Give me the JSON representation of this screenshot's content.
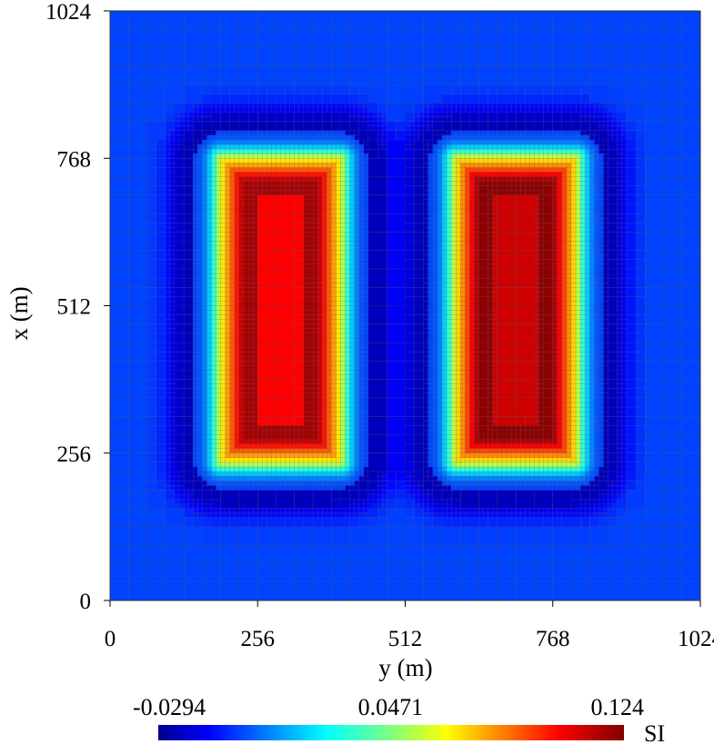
{
  "chart_data": {
    "type": "heatmap",
    "title": "",
    "xlabel": "y (m)",
    "ylabel": "x (m)",
    "xlim": [
      0,
      1024
    ],
    "ylim": [
      0,
      1024
    ],
    "xticks": [
      "0",
      "256",
      "512",
      "768",
      "1024"
    ],
    "yticks": [
      "0",
      "256",
      "512",
      "768",
      "1024"
    ],
    "xtick_values": [
      0,
      256,
      512,
      768,
      1024
    ],
    "ytick_values": [
      0,
      256,
      512,
      768,
      1024
    ],
    "grid": "adaptive quadtree mesh, finer near the two blocks",
    "colorbar": {
      "label": "SI",
      "min": -0.0294,
      "max": 0.124,
      "tick_labels": [
        "-0.0294",
        "0.0471",
        "0.124"
      ],
      "tick_values": [
        -0.0294,
        0.0471,
        0.124
      ],
      "placement": "bottom",
      "colormap": "jet"
    },
    "background_value": 0.0,
    "features": [
      {
        "name": "left block",
        "y_range": [
          192,
          400
        ],
        "x_range": [
          240,
          768
        ],
        "peak_value": 0.118,
        "core_value": 0.105
      },
      {
        "name": "right block",
        "y_range": [
          600,
          808
        ],
        "x_range": [
          240,
          768
        ],
        "peak_value": 0.122,
        "core_value": 0.112
      },
      {
        "name": "left block low halo",
        "y_range": [
          130,
          440
        ],
        "x_range": [
          180,
          810
        ],
        "value": -0.02
      },
      {
        "name": "right block low halo",
        "y_range": [
          560,
          880
        ],
        "x_range": [
          180,
          810
        ],
        "value": -0.02
      }
    ]
  }
}
